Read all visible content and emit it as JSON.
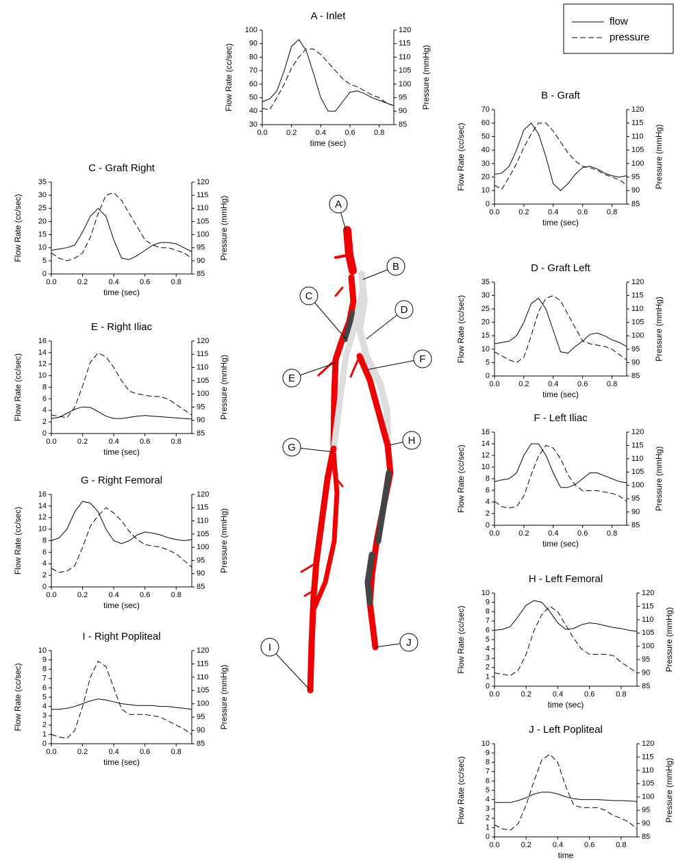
{
  "chart_data": [
    {
      "type": "line",
      "title": "A - Inlet",
      "xlabel": "time (sec)",
      "ylabel": "Flow Rate (cc/sec)",
      "y2label": "Pressure (mmHg)",
      "x": [
        0,
        0.05,
        0.1,
        0.15,
        0.2,
        0.25,
        0.3,
        0.35,
        0.4,
        0.45,
        0.5,
        0.55,
        0.6,
        0.65,
        0.7,
        0.75,
        0.8,
        0.85,
        0.9
      ],
      "xlim": [
        0,
        0.9
      ],
      "xticks": [
        {
          "value": 0,
          "label": "0.0"
        },
        0.2,
        0.4,
        0.6,
        0.8
      ],
      "ylim": [
        30,
        100
      ],
      "yticks": [
        30,
        40,
        50,
        60,
        70,
        80,
        90,
        100
      ],
      "y2lim": [
        85,
        120
      ],
      "y2ticks": [
        85,
        90,
        95,
        100,
        105,
        110,
        115,
        120
      ],
      "series": [
        {
          "name": "flow",
          "color": "#000000",
          "values": [
            47,
            49,
            55,
            70,
            88,
            93,
            85,
            68,
            50,
            40,
            40,
            47,
            54,
            55,
            53,
            50,
            48,
            46,
            44
          ]
        },
        {
          "name": "pressure",
          "color": "#000000",
          "axis": "y2",
          "values": [
            91,
            90.5,
            95,
            100,
            106,
            110,
            113,
            113,
            111,
            108,
            105,
            102,
            100,
            99,
            97.5,
            96,
            95,
            93,
            92
          ]
        }
      ]
    },
    {
      "type": "line",
      "title": "B - Graft",
      "xlabel": "time (sec)",
      "ylabel": "Flow Rate (cc/sec)",
      "y2label": "Pressure (mmHg)",
      "x": [
        0,
        0.05,
        0.1,
        0.15,
        0.2,
        0.25,
        0.3,
        0.35,
        0.4,
        0.45,
        0.5,
        0.55,
        0.6,
        0.65,
        0.7,
        0.75,
        0.8,
        0.85,
        0.9
      ],
      "xlim": [
        0,
        0.9
      ],
      "xticks": [
        {
          "value": 0,
          "label": "0.0"
        },
        0.2,
        0.4,
        0.6,
        0.8
      ],
      "ylim": [
        0,
        70
      ],
      "yticks": [
        0,
        10,
        20,
        30,
        40,
        50,
        60,
        70
      ],
      "y2lim": [
        85,
        120
      ],
      "y2ticks": [
        85,
        90,
        95,
        100,
        105,
        110,
        115,
        120
      ],
      "series": [
        {
          "name": "flow",
          "color": "#000000",
          "values": [
            22,
            23,
            28,
            40,
            55,
            60,
            52,
            35,
            15,
            10,
            15,
            22,
            27,
            28,
            26,
            23,
            21,
            20,
            21
          ]
        },
        {
          "name": "pressure",
          "color": "#000000",
          "axis": "y2",
          "values": [
            92,
            90.5,
            95,
            100,
            106,
            111,
            115,
            115,
            112,
            108,
            104,
            101,
            99,
            98.5,
            97.5,
            96,
            95,
            94,
            92
          ]
        }
      ]
    },
    {
      "type": "line",
      "title": "C - Graft Right",
      "xlabel": "time (sec)",
      "ylabel": "Flow Rate (cc/sec)",
      "y2label": "Pressure (mmHg)",
      "x": [
        0,
        0.05,
        0.1,
        0.15,
        0.2,
        0.25,
        0.3,
        0.35,
        0.4,
        0.45,
        0.5,
        0.55,
        0.6,
        0.65,
        0.7,
        0.75,
        0.8,
        0.85,
        0.9
      ],
      "xlim": [
        0,
        0.9
      ],
      "xticks": [
        {
          "value": 0,
          "label": "0.0"
        },
        0.2,
        0.4,
        0.6,
        0.8
      ],
      "ylim": [
        0,
        35
      ],
      "yticks": [
        0,
        5,
        10,
        15,
        20,
        25,
        30,
        35
      ],
      "y2lim": [
        85,
        120
      ],
      "y2ticks": [
        85,
        90,
        95,
        100,
        105,
        110,
        115,
        120
      ],
      "series": [
        {
          "name": "flow",
          "color": "#000000",
          "values": [
            9,
            9.5,
            10,
            11,
            16,
            22,
            25,
            22,
            13,
            6,
            5.5,
            7,
            9,
            11,
            12,
            12,
            11.5,
            10,
            8.5
          ]
        },
        {
          "name": "pressure",
          "color": "#000000",
          "axis": "y2",
          "values": [
            93,
            91,
            90,
            91,
            93,
            99,
            108,
            115,
            116,
            113,
            108,
            103,
            98,
            96,
            95,
            95,
            94,
            93,
            91
          ]
        }
      ]
    },
    {
      "type": "line",
      "title": "D - Graft Left",
      "xlabel": "time (sec)",
      "ylabel": "Flow Rate (cc/sec)",
      "y2label": "Pressure (mmHg)",
      "x": [
        0,
        0.05,
        0.1,
        0.15,
        0.2,
        0.25,
        0.3,
        0.35,
        0.4,
        0.45,
        0.5,
        0.55,
        0.6,
        0.65,
        0.7,
        0.75,
        0.8,
        0.85,
        0.9
      ],
      "xlim": [
        0,
        0.9
      ],
      "xticks": [
        {
          "value": 0,
          "label": "0.0"
        },
        0.2,
        0.4,
        0.6,
        0.8
      ],
      "ylim": [
        0,
        35
      ],
      "yticks": [
        0,
        5,
        10,
        15,
        20,
        25,
        30,
        35
      ],
      "y2lim": [
        85,
        120
      ],
      "y2ticks": [
        85,
        90,
        95,
        100,
        105,
        110,
        115,
        120
      ],
      "series": [
        {
          "name": "flow",
          "color": "#000000",
          "values": [
            12,
            12.5,
            13,
            15,
            20,
            27,
            29,
            25,
            17,
            9,
            8.5,
            11,
            13,
            15.5,
            16,
            15,
            13.5,
            12.5,
            11
          ]
        },
        {
          "name": "pressure",
          "color": "#000000",
          "axis": "y2",
          "values": [
            94,
            92.5,
            91,
            90,
            92,
            100,
            109,
            114,
            115,
            113,
            108,
            103,
            98,
            97,
            96.5,
            96,
            95,
            93,
            91
          ]
        }
      ]
    },
    {
      "type": "line",
      "title": "E - Right Iliac",
      "xlabel": "time (sec)",
      "ylabel": "Flow Rate (cc/sec)",
      "y2label": "Pressure (mmHg)",
      "x": [
        0,
        0.05,
        0.1,
        0.15,
        0.2,
        0.25,
        0.3,
        0.35,
        0.4,
        0.45,
        0.5,
        0.55,
        0.6,
        0.65,
        0.7,
        0.75,
        0.8,
        0.85,
        0.9
      ],
      "xlim": [
        0,
        0.9
      ],
      "xticks": [
        {
          "value": 0,
          "label": "0.0"
        },
        0.2,
        0.4,
        0.6,
        0.8
      ],
      "ylim": [
        0,
        16
      ],
      "yticks": [
        0,
        2,
        4,
        6,
        8,
        10,
        12,
        14,
        16
      ],
      "y2lim": [
        85,
        120
      ],
      "y2ticks": [
        85,
        90,
        95,
        100,
        105,
        110,
        115,
        120
      ],
      "series": [
        {
          "name": "flow",
          "color": "#000000",
          "values": [
            2.6,
            2.8,
            3.5,
            4.2,
            4.6,
            4.5,
            3.8,
            3,
            2.6,
            2.6,
            2.8,
            3,
            3.1,
            3,
            2.9,
            2.8,
            2.7,
            2.6,
            2.5
          ]
        },
        {
          "name": "pressure",
          "color": "#000000",
          "axis": "y2",
          "values": [
            92,
            91.5,
            91,
            95,
            103,
            112,
            115.5,
            114,
            110,
            105,
            101,
            100,
            99.5,
            99,
            99,
            98,
            96,
            94,
            92
          ]
        }
      ]
    },
    {
      "type": "line",
      "title": "F - Left Iliac",
      "xlabel": "time (sec)",
      "ylabel": "Flow Rate (cc/sec)",
      "y2label": "Pressure (mmHg)",
      "x": [
        0,
        0.05,
        0.1,
        0.15,
        0.2,
        0.25,
        0.3,
        0.35,
        0.4,
        0.45,
        0.5,
        0.55,
        0.6,
        0.65,
        0.7,
        0.75,
        0.8,
        0.85,
        0.9
      ],
      "xlim": [
        0,
        0.9
      ],
      "xticks": [
        {
          "value": 0,
          "label": "0.0"
        },
        0.2,
        0.4,
        0.6,
        0.8
      ],
      "ylim": [
        0,
        16
      ],
      "yticks": [
        0,
        2,
        4,
        6,
        8,
        10,
        12,
        14,
        16
      ],
      "y2lim": [
        85,
        120
      ],
      "y2ticks": [
        85,
        90,
        95,
        100,
        105,
        110,
        115,
        120
      ],
      "series": [
        {
          "name": "flow",
          "color": "#000000",
          "values": [
            7.5,
            7.8,
            8,
            9,
            12,
            14,
            14,
            12,
            9,
            6.5,
            6.5,
            7,
            8,
            9,
            9,
            8.5,
            8,
            7.5,
            7.3
          ]
        },
        {
          "name": "pressure",
          "color": "#000000",
          "axis": "y2",
          "values": [
            94,
            92,
            91.5,
            92,
            96,
            104,
            111,
            115,
            114,
            110,
            104,
            100,
            98,
            98,
            98,
            97.5,
            97,
            96,
            94
          ]
        }
      ]
    },
    {
      "type": "line",
      "title": "G - Right Femoral",
      "xlabel": "time (sec)",
      "ylabel": "Flow Rate (cc/sec)",
      "y2label": "Pressure (mmHg)",
      "x": [
        0,
        0.05,
        0.1,
        0.15,
        0.2,
        0.25,
        0.3,
        0.35,
        0.4,
        0.45,
        0.5,
        0.55,
        0.6,
        0.65,
        0.7,
        0.75,
        0.8,
        0.85,
        0.9
      ],
      "xlim": [
        0,
        0.9
      ],
      "xticks": [
        {
          "value": 0,
          "label": "0.0"
        },
        0.2,
        0.4,
        0.6,
        0.8
      ],
      "ylim": [
        0,
        16
      ],
      "yticks": [
        0,
        2,
        4,
        6,
        8,
        10,
        12,
        14,
        16
      ],
      "y2lim": [
        85,
        120
      ],
      "y2ticks": [
        85,
        90,
        95,
        100,
        105,
        110,
        115,
        120
      ],
      "series": [
        {
          "name": "flow",
          "color": "#000000",
          "values": [
            8,
            8.5,
            10,
            13,
            14.8,
            14.5,
            13,
            10,
            8,
            7.5,
            8,
            9,
            9.5,
            9.3,
            9,
            8.5,
            8.2,
            8,
            8.2
          ]
        },
        {
          "name": "pressure",
          "color": "#000000",
          "axis": "y2",
          "values": [
            92,
            90.5,
            91,
            93,
            100,
            108,
            112,
            115,
            113,
            110,
            106,
            103,
            101,
            100.5,
            100,
            99,
            97.5,
            95,
            92.5
          ]
        }
      ]
    },
    {
      "type": "line",
      "title": "H - Left Femoral",
      "xlabel": "time (sec)",
      "ylabel": "Flow Rate (cc/sec)",
      "y2label": "Pressure (mmHg)",
      "x": [
        0,
        0.05,
        0.1,
        0.15,
        0.2,
        0.25,
        0.3,
        0.35,
        0.4,
        0.45,
        0.5,
        0.55,
        0.6,
        0.65,
        0.7,
        0.75,
        0.8,
        0.85,
        0.9
      ],
      "xlim": [
        0,
        0.9
      ],
      "xticks": [
        {
          "value": 0,
          "label": "0.0"
        },
        0.2,
        0.4,
        0.6,
        0.8
      ],
      "ylim": [
        0,
        10
      ],
      "yticks": [
        0,
        1,
        2,
        3,
        4,
        5,
        6,
        7,
        8,
        9,
        10
      ],
      "y2lim": [
        85,
        120
      ],
      "y2ticks": [
        85,
        90,
        95,
        100,
        105,
        110,
        115,
        120
      ],
      "series": [
        {
          "name": "flow",
          "color": "#000000",
          "values": [
            6,
            6.1,
            6.4,
            7.5,
            8.7,
            9.2,
            9,
            8,
            6.8,
            6.1,
            6.2,
            6.6,
            6.8,
            6.7,
            6.5,
            6.3,
            6.2,
            6,
            5.9
          ]
        },
        {
          "name": "pressure",
          "color": "#000000",
          "axis": "y2",
          "values": [
            90,
            89.5,
            89,
            91,
            97,
            106,
            112,
            115,
            113,
            108,
            103,
            99,
            97,
            97,
            97,
            96.5,
            94,
            92,
            90
          ]
        }
      ]
    },
    {
      "type": "line",
      "title": "I - Right Popliteal",
      "xlabel": "time (sec)",
      "ylabel": "Flow Rate (cc/sec)",
      "y2label": "Pressure (mmHg)",
      "x": [
        0,
        0.05,
        0.1,
        0.15,
        0.2,
        0.25,
        0.3,
        0.35,
        0.4,
        0.45,
        0.5,
        0.55,
        0.6,
        0.65,
        0.7,
        0.75,
        0.8,
        0.85,
        0.9
      ],
      "xlim": [
        0,
        0.9
      ],
      "xticks": [
        {
          "value": 0,
          "label": "0.0"
        },
        0.2,
        0.4,
        0.6,
        0.8
      ],
      "ylim": [
        0,
        10
      ],
      "yticks": [
        0,
        1,
        2,
        3,
        4,
        5,
        6,
        7,
        8,
        9,
        10
      ],
      "y2lim": [
        85,
        120
      ],
      "y2ticks": [
        85,
        90,
        95,
        100,
        105,
        110,
        115,
        120
      ],
      "series": [
        {
          "name": "flow",
          "color": "#000000",
          "values": [
            3.7,
            3.7,
            3.8,
            4,
            4.3,
            4.6,
            4.8,
            4.7,
            4.5,
            4.3,
            4.2,
            4.1,
            4.1,
            4.1,
            4,
            4,
            3.9,
            3.8,
            3.7
          ]
        },
        {
          "name": "pressure",
          "color": "#000000",
          "axis": "y2",
          "values": [
            88.5,
            87.5,
            87,
            90,
            99,
            110,
            116,
            114,
            106,
            98,
            96,
            96,
            96,
            95.5,
            95,
            93.5,
            92,
            90.5,
            88.5
          ]
        }
      ]
    },
    {
      "type": "line",
      "title": "J - Left Popliteal",
      "xlabel": "time",
      "ylabel": "Flow Rate (cc/sec)",
      "y2label": "Pressure (mmHg)",
      "x": [
        0,
        0.05,
        0.1,
        0.15,
        0.2,
        0.25,
        0.3,
        0.35,
        0.4,
        0.45,
        0.5,
        0.55,
        0.6,
        0.65,
        0.7,
        0.75,
        0.8,
        0.85,
        0.9
      ],
      "xlim": [
        0,
        0.9
      ],
      "xticks": [
        {
          "value": 0,
          "label": "0.0"
        },
        0.2,
        0.4,
        0.6,
        0.8
      ],
      "ylim": [
        0,
        10
      ],
      "yticks": [
        0,
        1,
        2,
        3,
        4,
        5,
        6,
        7,
        8,
        9,
        10
      ],
      "y2lim": [
        85,
        120
      ],
      "y2ticks": [
        85,
        90,
        95,
        100,
        105,
        110,
        115,
        120
      ],
      "series": [
        {
          "name": "flow",
          "color": "#000000",
          "values": [
            3.7,
            3.7,
            3.7,
            3.9,
            4.2,
            4.6,
            4.8,
            4.8,
            4.6,
            4.3,
            4.1,
            4,
            4,
            4,
            3.95,
            3.9,
            3.9,
            3.85,
            3.8
          ]
        },
        {
          "name": "pressure",
          "color": "#000000",
          "axis": "y2",
          "values": [
            89.5,
            88,
            87.5,
            90,
            97,
            106,
            114,
            116,
            113,
            104,
            97,
            96,
            96,
            96,
            95,
            93,
            92,
            90.5,
            88
          ]
        }
      ]
    }
  ],
  "diagram": {
    "labels": [
      "A",
      "B",
      "C",
      "D",
      "E",
      "F",
      "G",
      "H",
      "I",
      "J"
    ]
  }
}
